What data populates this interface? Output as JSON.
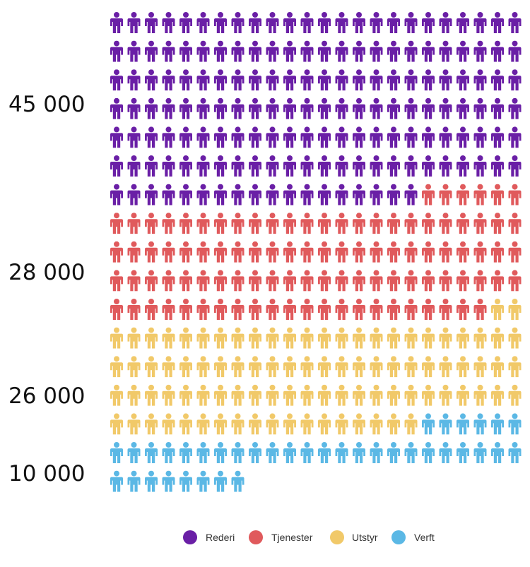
{
  "chart_data": {
    "type": "pictograph",
    "unit_glyph": "person-icon",
    "side_labels": [
      "45 000",
      "28 000",
      "26 000",
      "10 000"
    ],
    "series": [
      {
        "name": "Rederi",
        "count": 162,
        "value": 45000,
        "color": "#6A1FA6"
      },
      {
        "name": "Tjenester",
        "count": 100,
        "value": 28000,
        "color": "#E05A5C"
      },
      {
        "name": "Utstyr",
        "count": 92,
        "value": 26000,
        "color": "#F1C969"
      },
      {
        "name": "Verft",
        "count": 38,
        "value": 10000,
        "color": "#5BB8E5"
      }
    ],
    "legend": {
      "position": "bottom-center"
    }
  }
}
